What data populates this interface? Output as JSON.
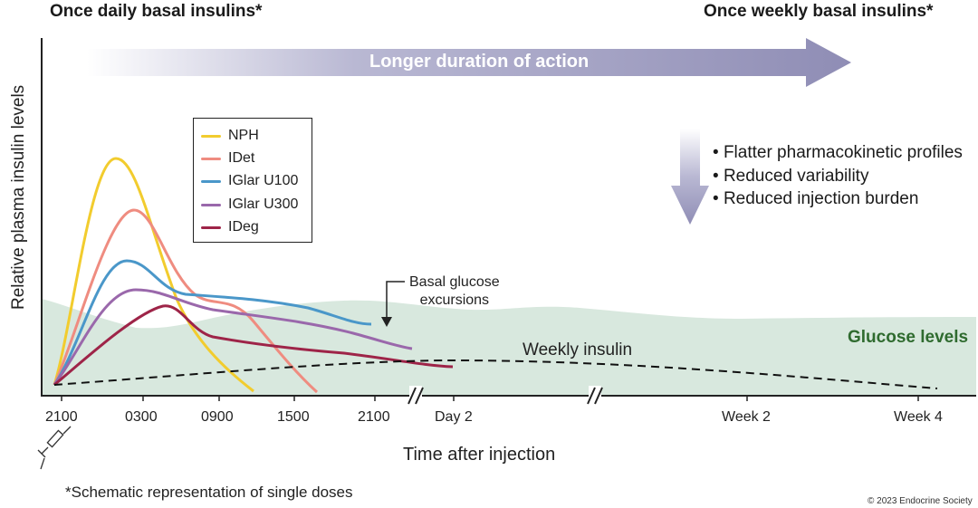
{
  "header": {
    "left": "Once daily basal insulins*",
    "right": "Once weekly basal insulins*"
  },
  "arrow_label": "Longer duration of action",
  "y_axis_label": "Relative plasma insulin levels",
  "x_axis_label": "Time after injection",
  "x_ticks": [
    "2100",
    "0300",
    "0900",
    "1500",
    "2100",
    "Day 2",
    "Week 2",
    "Week 4"
  ],
  "legend": [
    {
      "name": "NPH",
      "color": "#f2cc2e"
    },
    {
      "name": "IDet",
      "color": "#ef8c80"
    },
    {
      "name": "IGlar U100",
      "color": "#4a97c9"
    },
    {
      "name": "IGlar U300",
      "color": "#9a68ab"
    },
    {
      "name": "IDeg",
      "color": "#9e2448"
    }
  ],
  "bullets": [
    "Flatter pharmacokinetic profiles",
    "Reduced variability",
    "Reduced injection burden"
  ],
  "annotations": {
    "basal_glucose": [
      "Basal glucose",
      "excursions"
    ],
    "weekly_insulin": "Weekly insulin",
    "glucose_levels": "Glucose levels"
  },
  "footnote": "*Schematic representation of single doses",
  "copyright": "© 2023 Endocrine Society",
  "colors": {
    "glucose_fill": "#d8e8de",
    "glucose_label": "#2f6b2f",
    "arrow": "#9a98bd"
  }
}
